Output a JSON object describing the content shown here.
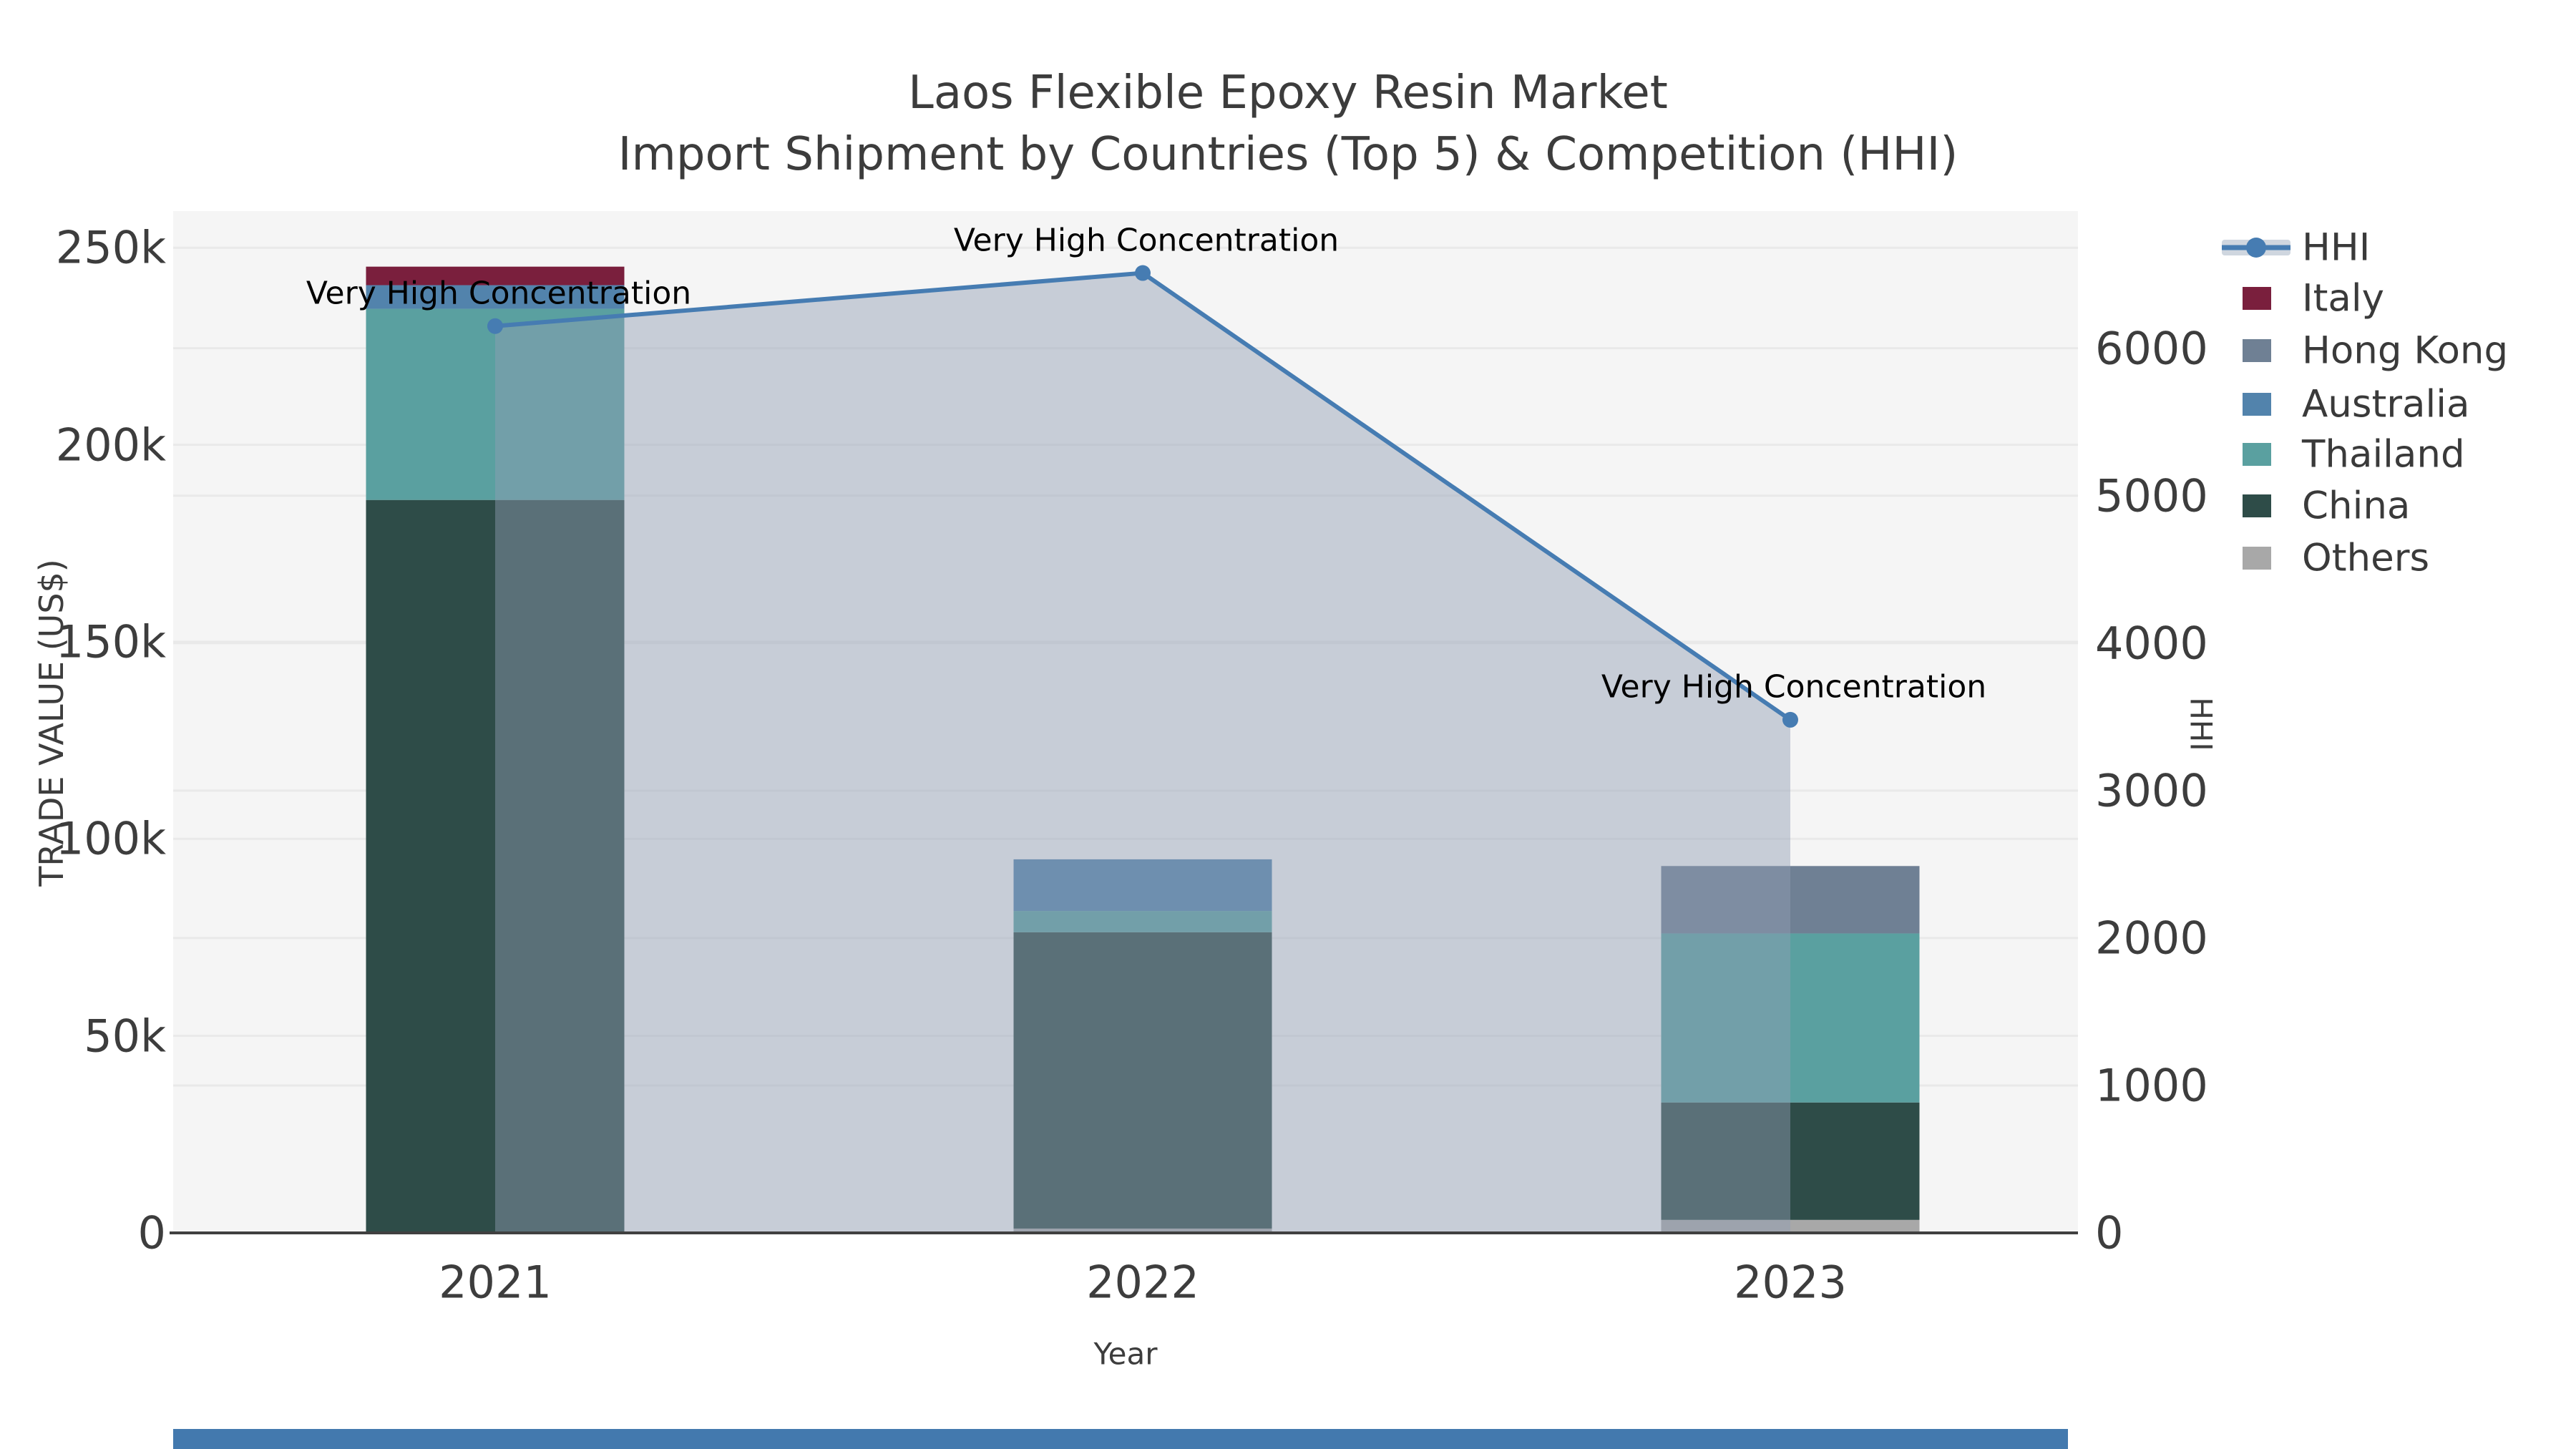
{
  "title": "Laos Flexible Epoxy Resin Market",
  "subtitle": "Import Shipment by Countries (Top 5) & Competition (HHI)",
  "axes": {
    "x": {
      "label": "Year",
      "ticks": [
        "2021",
        "2022",
        "2023"
      ]
    },
    "y_left": {
      "label": "TRADE VALUE (US$)",
      "ticks": [
        "0",
        "50k",
        "100k",
        "150k",
        "200k",
        "250k"
      ],
      "tick_values": [
        0,
        50000,
        100000,
        150000,
        200000,
        250000
      ]
    },
    "y_right": {
      "label": "HHI",
      "ticks": [
        "0",
        "1000",
        "2000",
        "3000",
        "4000",
        "5000",
        "6000"
      ],
      "tick_values": [
        0,
        1000,
        2000,
        3000,
        4000,
        5000,
        6000
      ]
    }
  },
  "legend": [
    {
      "label": "HHI",
      "type": "line",
      "color": "#467cb2",
      "band": "#cfd6df"
    },
    {
      "label": "Italy",
      "type": "swatch",
      "color": "#7a1f3d"
    },
    {
      "label": "Hong Kong",
      "type": "swatch",
      "color": "#6f8094"
    },
    {
      "label": "Australia",
      "type": "swatch",
      "color": "#5283ac"
    },
    {
      "label": "Thailand",
      "type": "swatch",
      "color": "#5aa0a0"
    },
    {
      "label": "China",
      "type": "swatch",
      "color": "#2e4c48"
    },
    {
      "label": "Others",
      "type": "swatch",
      "color": "#a8a8a8"
    }
  ],
  "colors": {
    "plot_background": "#f5f5f5",
    "gridline": "#e9e9e9",
    "axis_line": "#404040",
    "hhi_line": "#467cb2",
    "hhi_area": "rgba(144,158,180,0.45)",
    "bottom_bar": "#4379ae"
  },
  "chart_data": {
    "type": "bar",
    "subtype": "stacked-bars-with-hhi-line-dual-axis",
    "title": "Laos Flexible Epoxy Resin Market",
    "subtitle": "Import Shipment by Countries (Top 5) & Competition (HHI)",
    "categories": [
      "2021",
      "2022",
      "2023"
    ],
    "stack_order_note": "series listed bottom-to-top of stack",
    "series": [
      {
        "name": "Others",
        "color": "#a8a8a8",
        "values": [
          0,
          1100,
          3300
        ]
      },
      {
        "name": "China",
        "color": "#2e4c48",
        "values": [
          186000,
          75200,
          29800
        ]
      },
      {
        "name": "Thailand",
        "color": "#5aa0a0",
        "values": [
          48500,
          5400,
          42900
        ]
      },
      {
        "name": "Australia",
        "color": "#5283ac",
        "values": [
          6000,
          13100,
          0
        ]
      },
      {
        "name": "Hong Kong",
        "color": "#6f8094",
        "values": [
          0,
          0,
          17100
        ]
      },
      {
        "name": "Italy",
        "color": "#7a1f3d",
        "values": [
          4700,
          0,
          0
        ]
      }
    ],
    "line_series": {
      "name": "HHI",
      "color": "#467cb2",
      "values": [
        6150,
        6510,
        3480
      ],
      "area_fill": "rgba(144,158,180,0.45)",
      "point_annotations": [
        "Very High Concentration",
        "Very High Concentration",
        "Very High Concentration"
      ]
    },
    "xlabel": "Year",
    "ylabel_left": "TRADE VALUE (US$)",
    "ylabel_right": "HHI",
    "ylim_left": [
      0,
      259300
    ],
    "ylim_right": [
      0,
      6930
    ],
    "grid": true,
    "legend_position": "top-right"
  }
}
